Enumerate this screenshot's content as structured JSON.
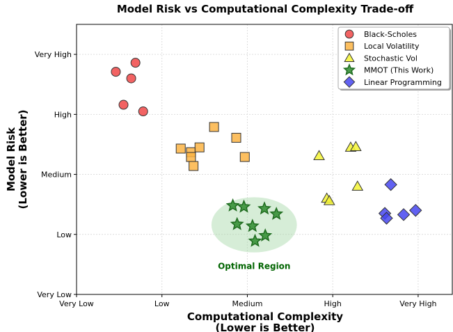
{
  "chart_data": {
    "type": "scatter",
    "title": "Model Risk vs Computational Complexity Trade-off",
    "xlabel": [
      "Computational Complexity",
      "(Lower is Better)"
    ],
    "ylabel": [
      "Model Risk",
      "(Lower is Better)"
    ],
    "xlim": [
      0,
      4.4
    ],
    "ylim": [
      0,
      4.5
    ],
    "x_ticks": [
      0,
      1,
      2,
      3,
      4
    ],
    "x_tick_labels": [
      "Very Low",
      "Low",
      "Medium",
      "High",
      "Very High"
    ],
    "y_ticks": [
      0,
      1,
      2,
      3,
      4
    ],
    "y_tick_labels": [
      "Very Low",
      "Low",
      "Medium",
      "High",
      "Very High"
    ],
    "grid": true,
    "legend_position": "top-right",
    "series": [
      {
        "name": "Black-Scholes",
        "marker": "circle",
        "color": "#f04848",
        "x": [
          0.46,
          0.69,
          0.64,
          0.55,
          0.78
        ],
        "y": [
          3.71,
          3.86,
          3.6,
          3.16,
          3.05
        ]
      },
      {
        "name": "Local Volatility",
        "marker": "square",
        "color": "#fbb444",
        "x": [
          1.22,
          1.34,
          1.34,
          1.44,
          1.37,
          1.61,
          1.87,
          1.97
        ],
        "y": [
          2.43,
          2.37,
          2.29,
          2.45,
          2.14,
          2.79,
          2.61,
          2.29
        ]
      },
      {
        "name": "Stochastic Vol",
        "marker": "triangle",
        "color": "#f4f434",
        "x": [
          2.84,
          3.21,
          3.27,
          2.93,
          2.96,
          3.29
        ],
        "y": [
          2.31,
          2.45,
          2.46,
          1.6,
          1.56,
          1.8
        ]
      },
      {
        "name": "MMOT (This Work)",
        "marker": "star",
        "color": "#2e8b2e",
        "x": [
          1.83,
          1.96,
          2.2,
          2.34,
          1.88,
          2.06,
          2.21,
          2.09
        ],
        "y": [
          1.48,
          1.46,
          1.43,
          1.34,
          1.17,
          1.14,
          0.98,
          0.89
        ]
      },
      {
        "name": "Linear Programming",
        "marker": "diamond",
        "color": "#4646f0",
        "x": [
          3.68,
          3.61,
          3.63,
          3.83,
          3.97
        ],
        "y": [
          1.83,
          1.35,
          1.27,
          1.33,
          1.4
        ]
      }
    ],
    "annotations": [
      {
        "text": "Optimal Region",
        "color": "#006400",
        "region": {
          "cx": 2.08,
          "cy": 1.16,
          "rx": 0.5,
          "ry": 0.46,
          "color": "#a5d6a7"
        }
      }
    ]
  }
}
